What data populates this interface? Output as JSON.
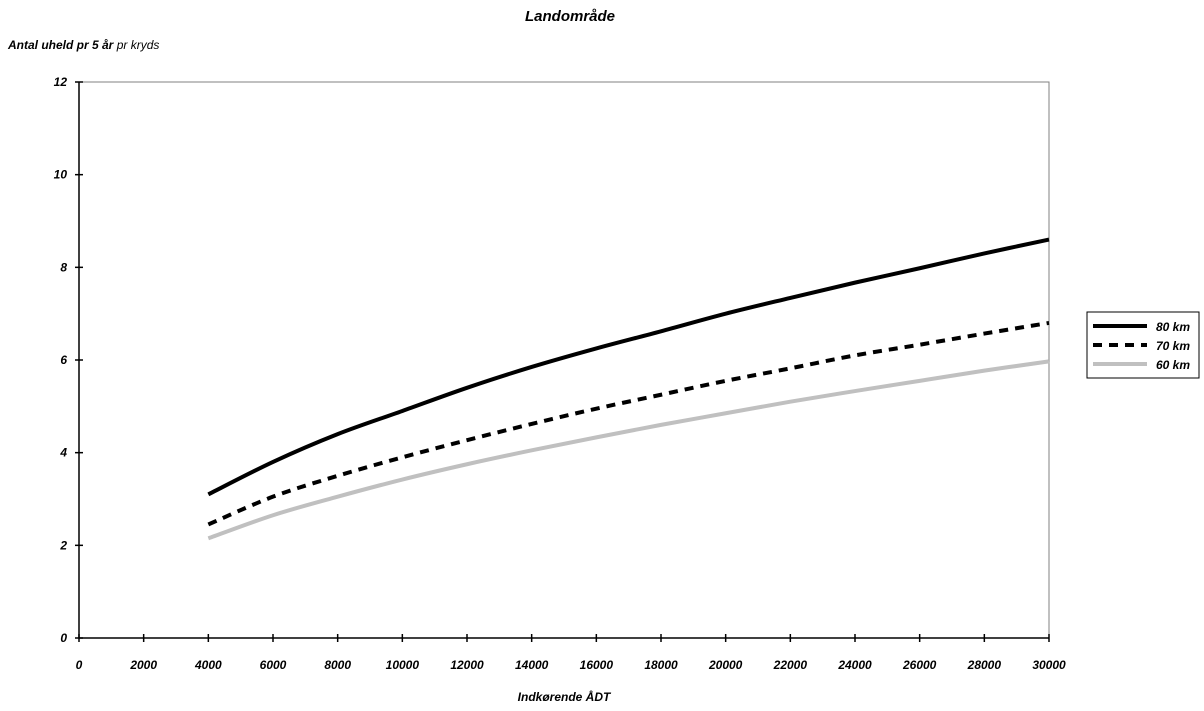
{
  "chart_data": {
    "type": "line",
    "title": "Landområde",
    "ylabel_bold": "Antal uheld pr 5 år",
    "ylabel_rest": "pr kryds",
    "xlabel": "Indkørende ÅDT",
    "xlim": [
      0,
      30000
    ],
    "ylim": [
      0,
      12
    ],
    "xticks": [
      0,
      2000,
      4000,
      6000,
      8000,
      10000,
      12000,
      14000,
      16000,
      18000,
      20000,
      22000,
      24000,
      26000,
      28000,
      30000
    ],
    "yticks": [
      0,
      2,
      4,
      6,
      8,
      10,
      12
    ],
    "grid": false,
    "legend_position": "right",
    "x": [
      4000,
      6000,
      8000,
      10000,
      12000,
      14000,
      16000,
      18000,
      20000,
      22000,
      24000,
      26000,
      28000,
      30000
    ],
    "series": [
      {
        "name": "80 km",
        "color": "#000000",
        "style": "solid",
        "values": [
          3.1,
          3.8,
          4.4,
          4.9,
          5.4,
          5.85,
          6.25,
          6.62,
          7.0,
          7.34,
          7.67,
          7.98,
          8.3,
          8.6
        ]
      },
      {
        "name": "70 km",
        "color": "#000000",
        "style": "dashed",
        "values": [
          2.45,
          3.05,
          3.5,
          3.9,
          4.27,
          4.62,
          4.95,
          5.25,
          5.55,
          5.82,
          6.1,
          6.33,
          6.57,
          6.8
        ]
      },
      {
        "name": "60 km",
        "color": "#c0c0c0",
        "style": "solid",
        "values": [
          2.15,
          2.65,
          3.05,
          3.42,
          3.75,
          4.05,
          4.33,
          4.6,
          4.85,
          5.1,
          5.33,
          5.55,
          5.77,
          5.97
        ]
      }
    ]
  }
}
